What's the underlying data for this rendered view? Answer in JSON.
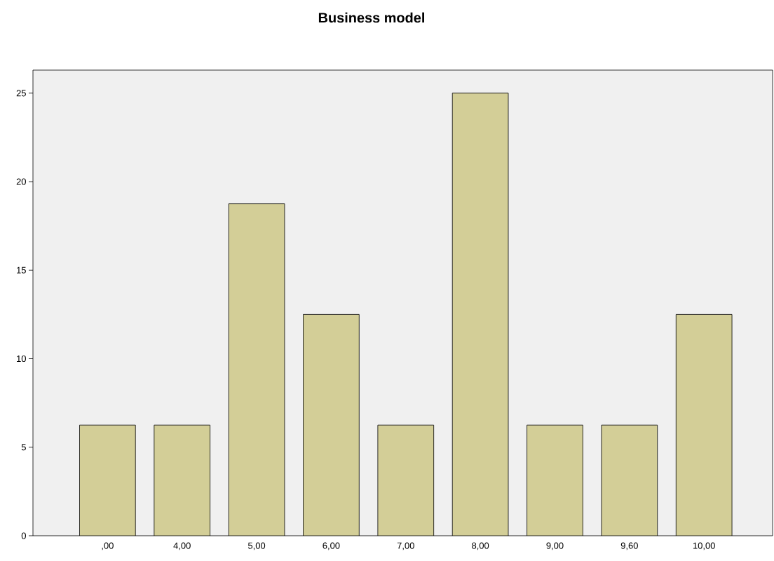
{
  "chart_data": {
    "type": "bar",
    "title": "Business model",
    "categories": [
      ",00",
      "4,00",
      "5,00",
      "6,00",
      "7,00",
      "8,00",
      "9,00",
      "9,60",
      "10,00"
    ],
    "values": [
      6.25,
      6.25,
      18.75,
      12.5,
      6.25,
      25,
      6.25,
      6.25,
      12.5
    ],
    "color": "#d3ce97",
    "ylim": [
      0,
      26.3
    ],
    "yticks": [
      0,
      5,
      10,
      15,
      20,
      25
    ],
    "grid": false
  }
}
